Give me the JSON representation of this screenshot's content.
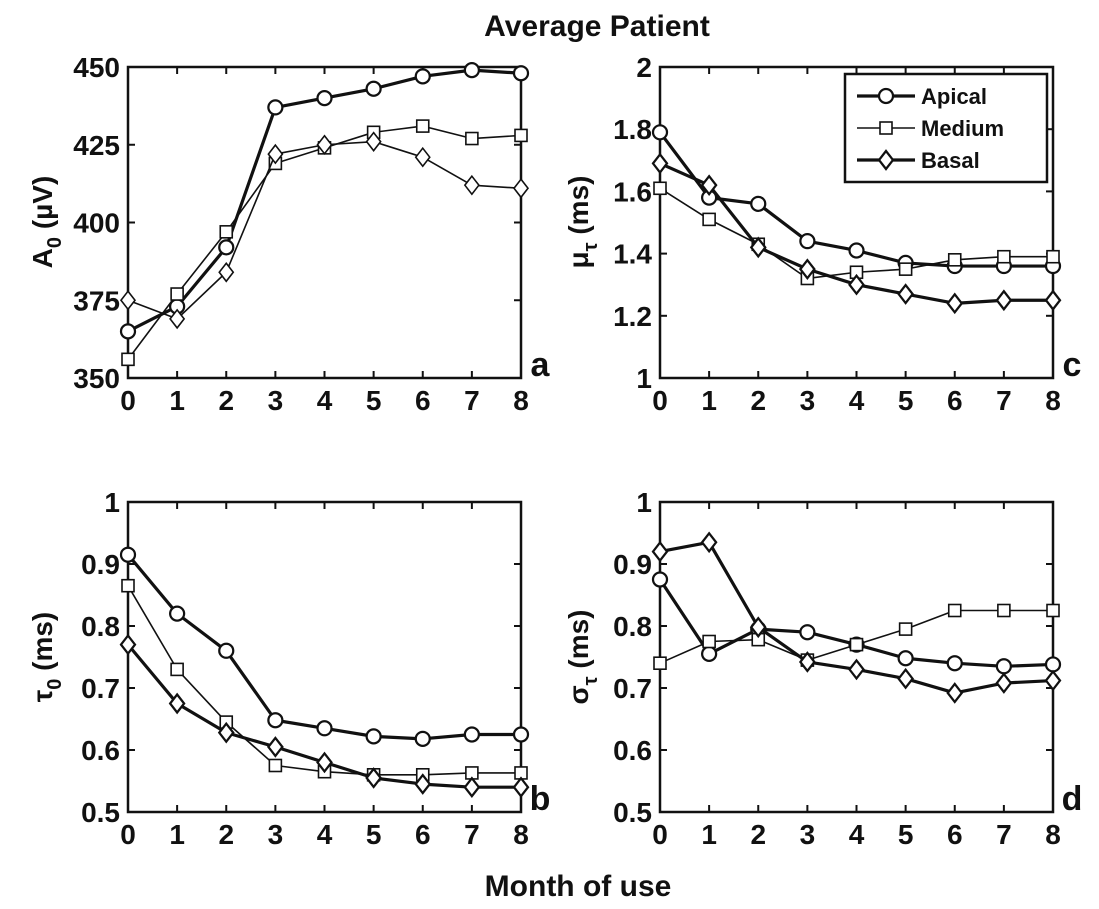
{
  "figure": {
    "title": "Average Patient",
    "xlabel": "Month of use"
  },
  "colors": {
    "line": "#111111",
    "background": "#ffffff"
  },
  "chart_data": [
    {
      "id": "a",
      "type": "line",
      "panel_label": "a",
      "ylabel_main": "A",
      "ylabel_sub": "0",
      "ylabel_rest": " (µV)",
      "xlim": [
        0,
        8
      ],
      "ylim": [
        350,
        450
      ],
      "xticks": [
        "0",
        "1",
        "2",
        "3",
        "4",
        "5",
        "6",
        "7",
        "8"
      ],
      "yticks": [
        "350",
        "375",
        "400",
        "425",
        "450"
      ],
      "x": [
        0,
        1,
        2,
        3,
        4,
        5,
        6,
        7,
        8
      ],
      "series": [
        {
          "key": "apical",
          "marker": "circle",
          "weight": "thick",
          "values": [
            365,
            373,
            392,
            437,
            440,
            443,
            447,
            449,
            448
          ]
        },
        {
          "key": "medium",
          "marker": "square",
          "weight": "thin",
          "values": [
            356,
            377,
            397,
            419,
            424,
            429,
            431,
            427,
            428
          ]
        },
        {
          "key": "basal",
          "marker": "diamond",
          "weight": "thin",
          "values": [
            375,
            369,
            384,
            422,
            425,
            426,
            421,
            412,
            411
          ]
        }
      ]
    },
    {
      "id": "c",
      "type": "line",
      "panel_label": "c",
      "ylabel_main": "μ",
      "ylabel_sub": "τ",
      "ylabel_rest": " (ms)",
      "xlim": [
        0,
        8
      ],
      "ylim": [
        1,
        2
      ],
      "xticks": [
        "0",
        "1",
        "2",
        "3",
        "4",
        "5",
        "6",
        "7",
        "8"
      ],
      "yticks": [
        "1",
        "1.2",
        "1.4",
        "1.6",
        "1.8",
        "2"
      ],
      "x": [
        0,
        1,
        2,
        3,
        4,
        5,
        6,
        7,
        8
      ],
      "legend": {
        "position": "top-right",
        "entries": [
          "Apical",
          "Medium",
          "Basal"
        ]
      },
      "series": [
        {
          "key": "apical",
          "name": "Apical",
          "marker": "circle",
          "weight": "thick",
          "values": [
            1.79,
            1.58,
            1.56,
            1.44,
            1.41,
            1.37,
            1.36,
            1.36,
            1.36
          ]
        },
        {
          "key": "medium",
          "name": "Medium",
          "marker": "square",
          "weight": "thin",
          "values": [
            1.61,
            1.51,
            1.43,
            1.32,
            1.34,
            1.35,
            1.38,
            1.39,
            1.39
          ]
        },
        {
          "key": "basal",
          "name": "Basal",
          "marker": "diamond",
          "weight": "thick",
          "values": [
            1.69,
            1.62,
            1.42,
            1.35,
            1.3,
            1.27,
            1.24,
            1.25,
            1.25
          ]
        }
      ]
    },
    {
      "id": "b",
      "type": "line",
      "panel_label": "b",
      "ylabel_main": "τ",
      "ylabel_sub": "0",
      "ylabel_rest": " (ms)",
      "xlim": [
        0,
        8
      ],
      "ylim": [
        0.5,
        1
      ],
      "xticks": [
        "0",
        "1",
        "2",
        "3",
        "4",
        "5",
        "6",
        "7",
        "8"
      ],
      "yticks": [
        "0.5",
        "0.6",
        "0.7",
        "0.8",
        "0.9",
        "1"
      ],
      "x": [
        0,
        1,
        2,
        3,
        4,
        5,
        6,
        7,
        8
      ],
      "series": [
        {
          "key": "apical",
          "marker": "circle",
          "weight": "thick",
          "values": [
            0.915,
            0.82,
            0.76,
            0.648,
            0.635,
            0.622,
            0.618,
            0.625,
            0.625
          ]
        },
        {
          "key": "medium",
          "marker": "square",
          "weight": "thin",
          "values": [
            0.865,
            0.73,
            0.645,
            0.575,
            0.565,
            0.56,
            0.56,
            0.563,
            0.563
          ]
        },
        {
          "key": "basal",
          "marker": "diamond",
          "weight": "thick",
          "values": [
            0.77,
            0.675,
            0.628,
            0.605,
            0.58,
            0.555,
            0.545,
            0.54,
            0.54
          ]
        }
      ]
    },
    {
      "id": "d",
      "type": "line",
      "panel_label": "d",
      "ylabel_main": "σ",
      "ylabel_sub": "τ",
      "ylabel_rest": " (ms)",
      "xlim": [
        0,
        8
      ],
      "ylim": [
        0.5,
        1
      ],
      "xticks": [
        "0",
        "1",
        "2",
        "3",
        "4",
        "5",
        "6",
        "7",
        "8"
      ],
      "yticks": [
        "0.5",
        "0.6",
        "0.7",
        "0.8",
        "0.9",
        "1"
      ],
      "x": [
        0,
        1,
        2,
        3,
        4,
        5,
        6,
        7,
        8
      ],
      "series": [
        {
          "key": "apical",
          "marker": "circle",
          "weight": "thick",
          "values": [
            0.875,
            0.755,
            0.795,
            0.79,
            0.77,
            0.748,
            0.74,
            0.735,
            0.738
          ]
        },
        {
          "key": "medium",
          "marker": "square",
          "weight": "thin",
          "values": [
            0.74,
            0.775,
            0.778,
            0.745,
            0.77,
            0.795,
            0.825,
            0.825,
            0.825
          ]
        },
        {
          "key": "basal",
          "marker": "diamond",
          "weight": "thick",
          "values": [
            0.92,
            0.935,
            0.798,
            0.742,
            0.73,
            0.715,
            0.692,
            0.708,
            0.712
          ]
        }
      ]
    }
  ]
}
